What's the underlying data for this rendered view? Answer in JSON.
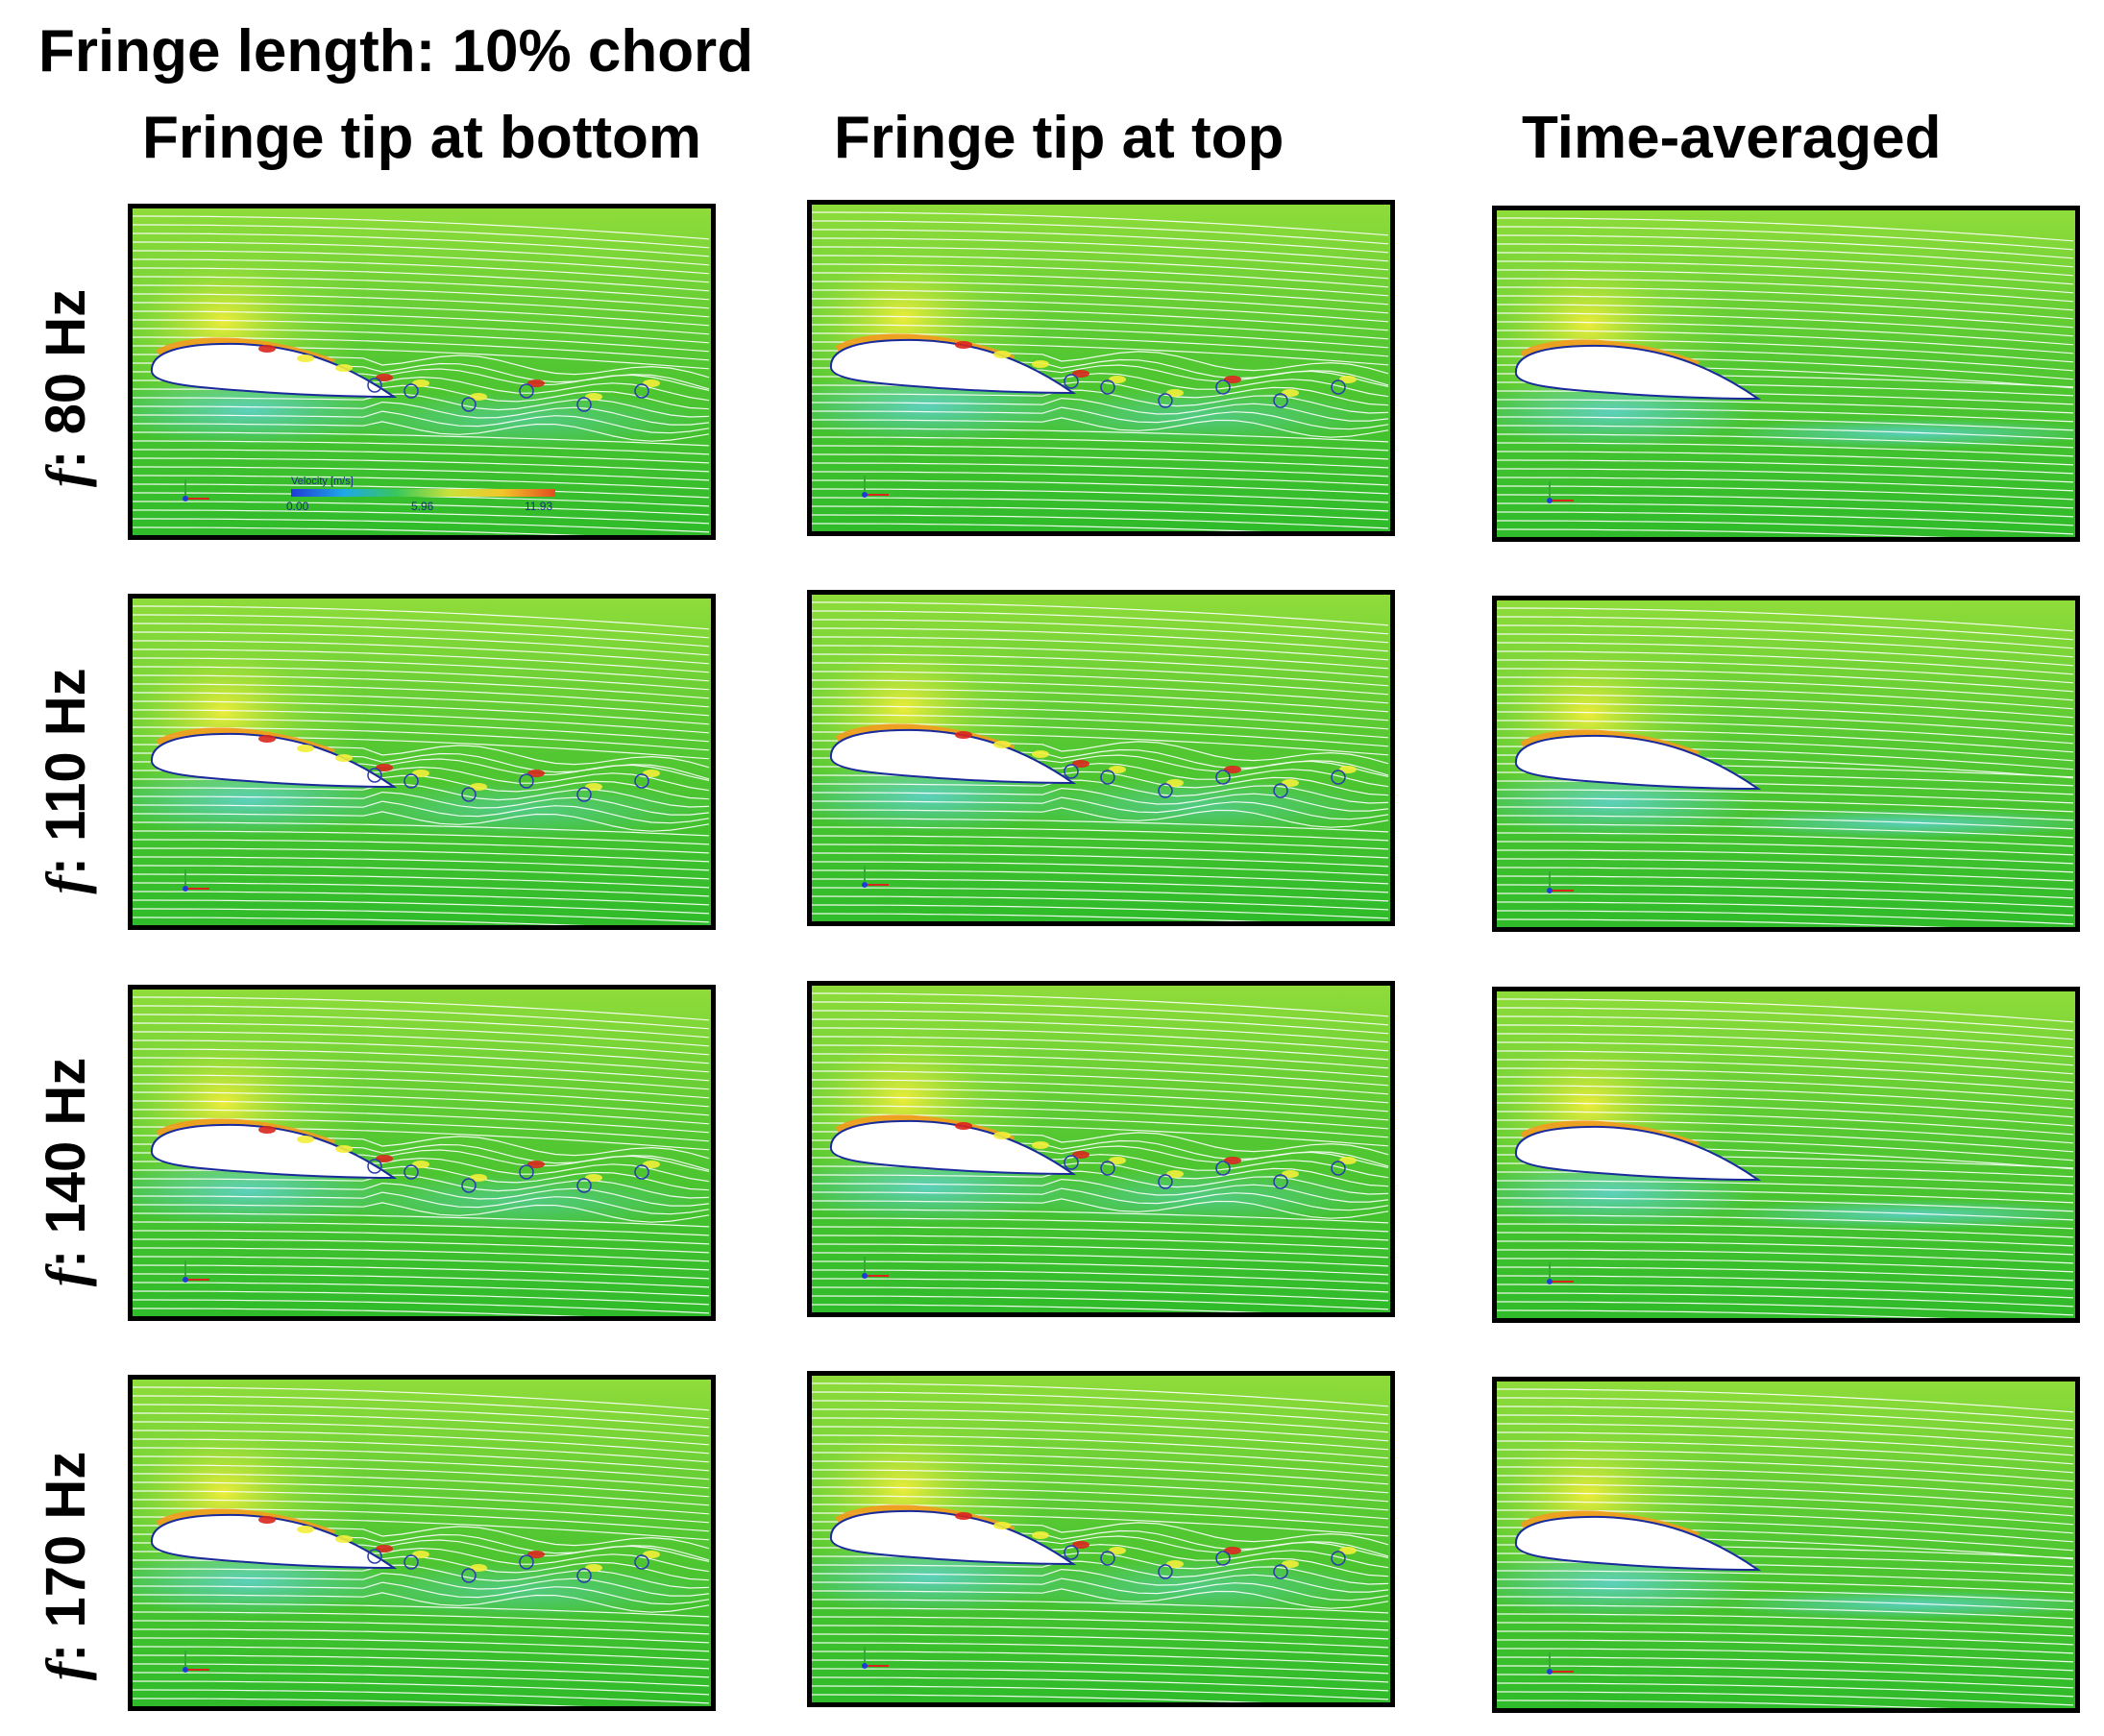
{
  "title": "Fringe length: 10% chord",
  "columns": [
    {
      "title": "Fringe tip at bottom"
    },
    {
      "title": "Fringe tip at top"
    },
    {
      "title": "Time-averaged"
    }
  ],
  "rows": [
    {
      "var": "f",
      "value": ": 80 Hz"
    },
    {
      "var": "f",
      "value": ": 110 Hz"
    },
    {
      "var": "f",
      "value": ": 140 Hz"
    },
    {
      "var": "f",
      "value": ": 170 Hz"
    }
  ],
  "colorbar": {
    "title": "Velocity [m/s]",
    "min_label": "0.00",
    "mid_label": "5.96",
    "max_label": "11.93",
    "colors": [
      "#1f3bd6",
      "#1fa8e8",
      "#39c75a",
      "#c8e23a",
      "#f3c62a",
      "#e34d1e"
    ]
  },
  "colors": {
    "field_base": "#2fbb2a",
    "field_light": "#8fdc3a",
    "stagnation_yellow": "#f2ee3a",
    "leading_edge_orange": "#f39a1e",
    "vortex_red": "#d8261c",
    "low_speed_cyan": "#5fd3e8",
    "streamline": "#ffffff",
    "frame": "#000000"
  }
}
